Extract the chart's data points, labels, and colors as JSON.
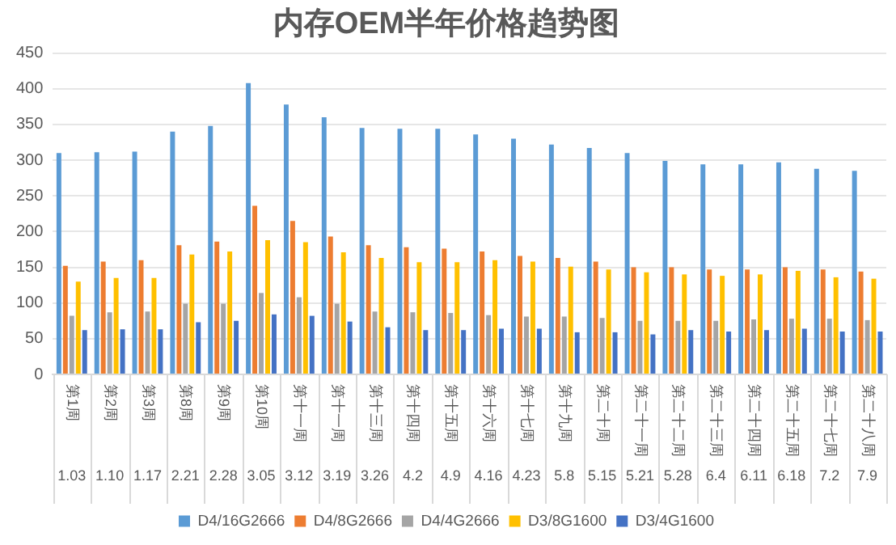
{
  "chart_data": {
    "type": "bar",
    "title": "内存OEM半年价格趋势图",
    "categories": [
      "第1周\n1.03",
      "第2周\n1.10",
      "第3周\n1.17",
      "第8周\n2.21",
      "第9周\n2.28",
      "第10周\n3.05",
      "第十一周\n3.12",
      "第十一周\n3.19",
      "第十三周\n3.26",
      "第十四周\n4.2",
      "第十五周\n4.9",
      "第十六周\n4.16",
      "第十七周\n4.23",
      "第十九周\n5.8",
      "第二十周\n5.15",
      "第二十一周\n5.21",
      "第二十二周\n5.28",
      "第二十三周\n6.4",
      "第二十四周\n6.11",
      "第二十五周\n6.18",
      "第二十七周\n7.2",
      "第二十八周\n7.9"
    ],
    "series": [
      {
        "name": "D4/16G2666",
        "color": "#5b9bd5",
        "values": [
          310,
          311,
          312,
          340,
          348,
          408,
          378,
          360,
          345,
          344,
          344,
          336,
          330,
          322,
          317,
          310,
          299,
          294,
          294,
          297,
          288,
          285
        ]
      },
      {
        "name": "D4/8G2666",
        "color": "#ed7d31",
        "values": [
          152,
          158,
          160,
          181,
          186,
          236,
          215,
          193,
          181,
          178,
          176,
          172,
          166,
          163,
          158,
          150,
          150,
          147,
          147,
          150,
          147,
          144
        ]
      },
      {
        "name": "D4/4G2666",
        "color": "#a5a5a5",
        "values": [
          82,
          87,
          88,
          99,
          99,
          114,
          108,
          99,
          88,
          87,
          86,
          83,
          81,
          81,
          79,
          75,
          75,
          75,
          77,
          78,
          78,
          76
        ]
      },
      {
        "name": "D3/8G1600",
        "color": "#ffc000",
        "values": [
          130,
          135,
          135,
          168,
          172,
          188,
          185,
          171,
          163,
          157,
          157,
          160,
          158,
          151,
          147,
          143,
          140,
          138,
          140,
          145,
          136,
          134
        ]
      },
      {
        "name": "D3/4G1600",
        "color": "#4472c4",
        "values": [
          62,
          63,
          63,
          73,
          75,
          84,
          82,
          74,
          66,
          62,
          62,
          64,
          64,
          59,
          59,
          56,
          62,
          60,
          62,
          64,
          60,
          60
        ]
      }
    ],
    "ylim": [
      0,
      450
    ],
    "yticks": [
      0,
      50,
      100,
      150,
      200,
      250,
      300,
      350,
      400,
      450
    ],
    "grid": "y",
    "legend": "bottom"
  }
}
